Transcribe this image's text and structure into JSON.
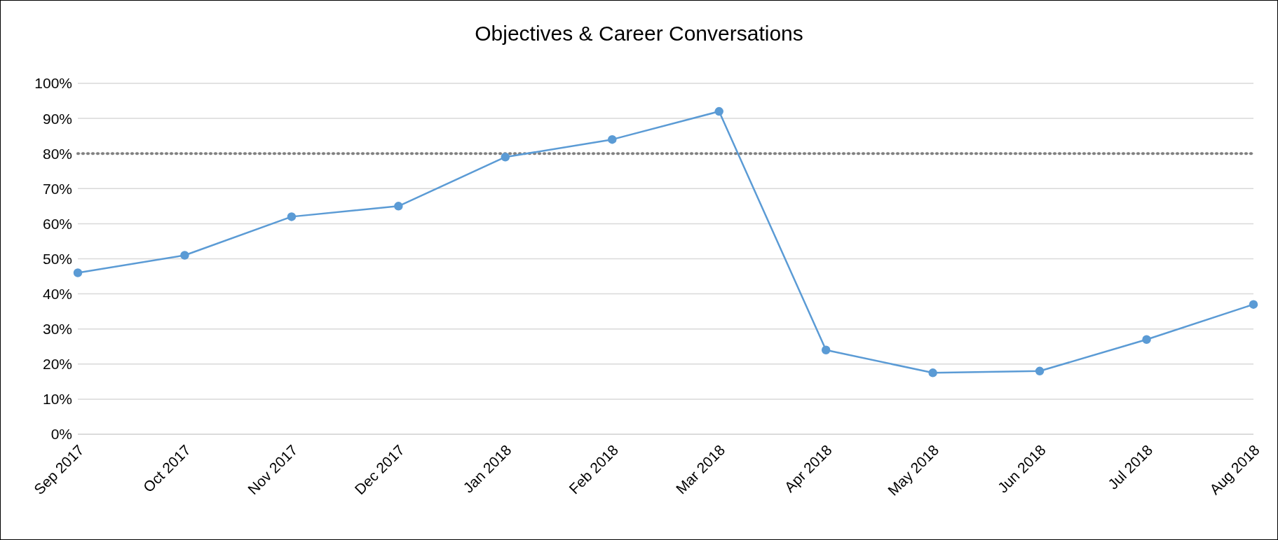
{
  "chart_data": {
    "type": "line",
    "title": "Objectives & Career Conversations",
    "categories": [
      "Sep 2017",
      "Oct 2017",
      "Nov 2017",
      "Dec 2017",
      "Jan 2018",
      "Feb 2018",
      "Mar 2018",
      "Apr 2018",
      "May 2018",
      "Jun 2018",
      "Jul 2018",
      "Aug 2018"
    ],
    "series": [
      {
        "color": "#5b9bd5",
        "values": [
          46,
          51,
          62,
          65,
          79,
          84,
          92,
          24,
          17.5,
          18,
          27,
          37
        ]
      }
    ],
    "ylim": [
      0,
      100
    ],
    "yticks": [
      {
        "value": 0,
        "label": "0%"
      },
      {
        "value": 10,
        "label": "10%"
      },
      {
        "value": 20,
        "label": "20%"
      },
      {
        "value": 30,
        "label": "30%"
      },
      {
        "value": 40,
        "label": "40%"
      },
      {
        "value": 50,
        "label": "50%"
      },
      {
        "value": 60,
        "label": "60%"
      },
      {
        "value": 70,
        "label": "70%"
      },
      {
        "value": 80,
        "label": "80%"
      },
      {
        "value": 90,
        "label": "90%"
      },
      {
        "value": 100,
        "label": "100%"
      }
    ],
    "ref_lines": [
      {
        "axis": "y",
        "value": 80,
        "color": "#808080",
        "line_style": "dotted"
      }
    ],
    "grid": "y",
    "marker": "circle",
    "legend": false
  }
}
